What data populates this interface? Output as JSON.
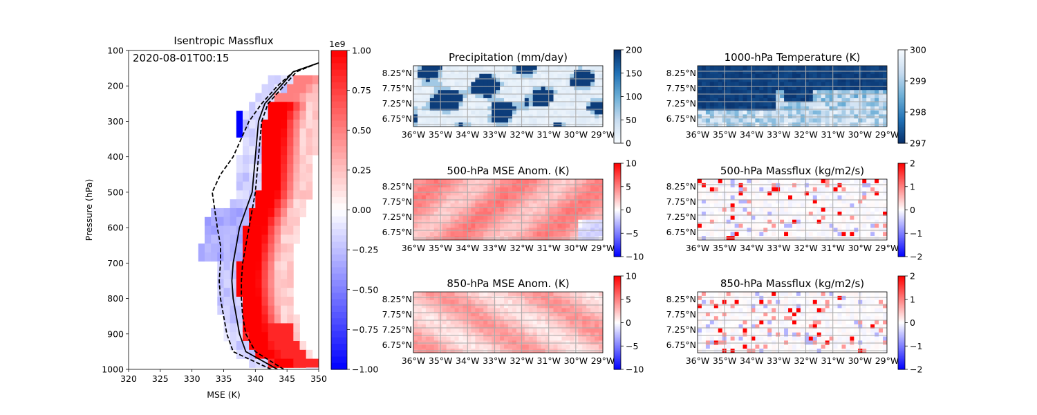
{
  "chart_data": [
    {
      "type": "heatmap",
      "title": "Isentropic Massflux",
      "annotation": "2020-08-01T00:15",
      "xlabel": "MSE (K)",
      "ylabel": "Pressure (hPa)",
      "xlim": [
        320,
        350
      ],
      "ylim": [
        1000,
        100
      ],
      "xticks": [
        "320",
        "325",
        "330",
        "335",
        "340",
        "345",
        "350"
      ],
      "yticks": [
        "100",
        "200",
        "300",
        "400",
        "500",
        "600",
        "700",
        "800",
        "900",
        "1000"
      ],
      "colorbar": {
        "cmap": "bwr",
        "range": [
          -1.0,
          1.0
        ],
        "offset_label": "1e9",
        "ticks": [
          "−1.00",
          "−0.75",
          "−0.50",
          "−0.25",
          "0.00",
          "0.25",
          "0.50",
          "0.75",
          "1.00"
        ]
      },
      "series": [
        {
          "style": "solid",
          "mse": [
            343.5,
            338.5,
            337.5,
            337.0,
            336.5,
            336.3,
            336.5,
            337.0,
            337.5,
            338.5,
            339.5,
            340.0,
            340.5,
            341.5,
            344.0,
            346.0,
            350.0
          ],
          "pressure": [
            1000,
            950,
            900,
            850,
            800,
            750,
            700,
            650,
            600,
            550,
            500,
            400,
            300,
            250,
            200,
            160,
            135
          ]
        },
        {
          "style": "dashed",
          "mse": [
            342.5,
            336.5,
            335.5,
            335.0,
            334.5,
            334.3,
            334.5,
            334.5,
            334.0,
            333.2,
            334.5,
            336.5,
            339.0,
            341.0,
            343.5,
            346.0,
            350.0
          ],
          "pressure": [
            1000,
            950,
            900,
            850,
            800,
            750,
            700,
            650,
            600,
            500,
            450,
            400,
            300,
            250,
            200,
            160,
            135
          ]
        },
        {
          "style": "dashed",
          "mse": [
            344.5,
            340.0,
            338.5,
            338.0,
            337.8,
            337.8,
            338.0,
            338.5,
            339.0,
            339.5,
            340.0,
            340.5,
            341.0,
            342.0,
            344.5,
            346.5,
            350.0
          ],
          "pressure": [
            1000,
            950,
            900,
            850,
            800,
            750,
            700,
            650,
            600,
            550,
            500,
            400,
            300,
            250,
            200,
            160,
            135
          ]
        }
      ]
    },
    {
      "type": "heatmap",
      "title": "Precipitation (mm/day)",
      "xticks": [
        "36°W",
        "35°W",
        "34°W",
        "33°W",
        "32°W",
        "31°W",
        "30°W",
        "29°W"
      ],
      "yticks": [
        "8.25°N",
        "7.75°N",
        "7.25°N",
        "6.75°N"
      ],
      "colorbar": {
        "cmap": "Blues",
        "range": [
          0,
          200
        ],
        "ticks": [
          "0",
          "50",
          "100",
          "150",
          "200"
        ]
      }
    },
    {
      "type": "heatmap",
      "title": "1000-hPa Temperature (K)",
      "xticks": [
        "36°W",
        "35°W",
        "34°W",
        "33°W",
        "32°W",
        "31°W",
        "30°W",
        "29°W"
      ],
      "yticks": [
        "8.25°N",
        "7.75°N",
        "7.25°N",
        "6.75°N"
      ],
      "colorbar": {
        "cmap": "Blues_r",
        "range": [
          297,
          300
        ],
        "ticks": [
          "297",
          "298",
          "299",
          "300"
        ]
      }
    },
    {
      "type": "heatmap",
      "title": "500-hPa MSE Anom. (K)",
      "xticks": [
        "36°W",
        "35°W",
        "34°W",
        "33°W",
        "32°W",
        "31°W",
        "30°W",
        "29°W"
      ],
      "yticks": [
        "8.25°N",
        "7.75°N",
        "7.25°N",
        "6.75°N"
      ],
      "colorbar": {
        "cmap": "bwr",
        "range": [
          -10,
          10
        ],
        "ticks": [
          "−10",
          "−5",
          "0",
          "5",
          "10"
        ]
      }
    },
    {
      "type": "heatmap",
      "title": "500-hPa Massflux (kg/m2/s)",
      "xticks": [
        "36°W",
        "35°W",
        "34°W",
        "33°W",
        "32°W",
        "31°W",
        "30°W",
        "29°W"
      ],
      "yticks": [
        "8.25°N",
        "7.75°N",
        "7.25°N",
        "6.75°N"
      ],
      "colorbar": {
        "cmap": "bwr",
        "range": [
          -2,
          2
        ],
        "ticks": [
          "−2",
          "−1",
          "0",
          "1",
          "2"
        ]
      }
    },
    {
      "type": "heatmap",
      "title": "850-hPa MSE Anom. (K)",
      "xticks": [
        "36°W",
        "35°W",
        "34°W",
        "33°W",
        "32°W",
        "31°W",
        "30°W",
        "29°W"
      ],
      "yticks": [
        "8.25°N",
        "7.75°N",
        "7.25°N",
        "6.75°N"
      ],
      "colorbar": {
        "cmap": "bwr",
        "range": [
          -10,
          10
        ],
        "ticks": [
          "−10",
          "−5",
          "0",
          "5",
          "10"
        ]
      }
    },
    {
      "type": "heatmap",
      "title": "850-hPa Massflux (kg/m2/s)",
      "xticks": [
        "36°W",
        "35°W",
        "34°W",
        "33°W",
        "32°W",
        "31°W",
        "30°W",
        "29°W"
      ],
      "yticks": [
        "8.25°N",
        "7.75°N",
        "7.25°N",
        "6.75°N"
      ],
      "colorbar": {
        "cmap": "bwr",
        "range": [
          -2,
          2
        ],
        "ticks": [
          "−2",
          "−1",
          "0",
          "1",
          "2"
        ]
      }
    }
  ]
}
